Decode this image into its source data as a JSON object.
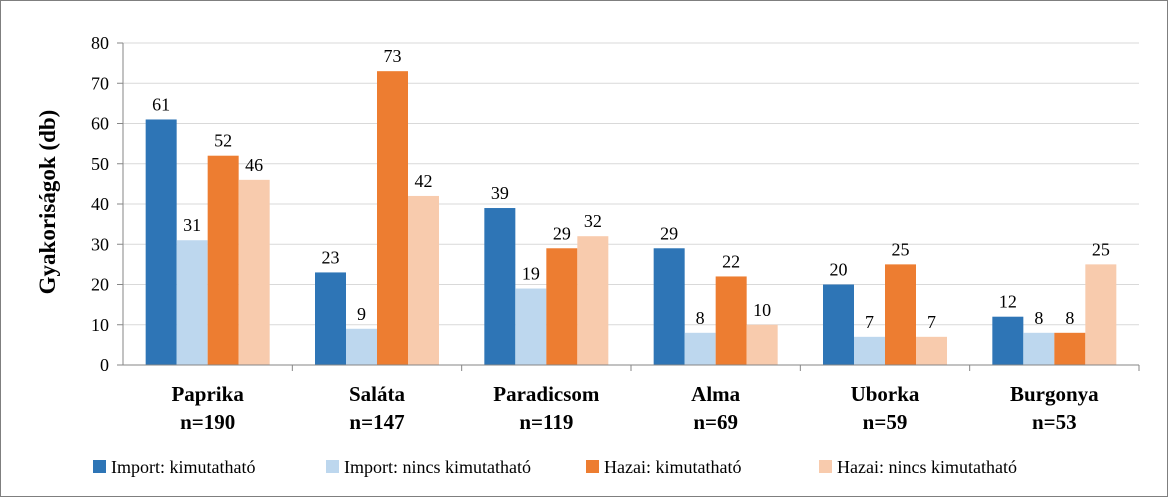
{
  "chart_data": {
    "type": "bar",
    "ylabel": "Gyakoriságok  (db)",
    "ylim": [
      0,
      80
    ],
    "yticks": [
      "0",
      "10",
      "20",
      "30",
      "40",
      "50",
      "60",
      "70",
      "80"
    ],
    "grid": true,
    "legend_position": "bottom",
    "categories": [
      {
        "name": "Paprika",
        "n": "n=190"
      },
      {
        "name": "Saláta",
        "n": "n=147"
      },
      {
        "name": "Paradicsom",
        "n": "n=119"
      },
      {
        "name": "Alma",
        "n": "n=69"
      },
      {
        "name": "Uborka",
        "n": "n=59"
      },
      {
        "name": "Burgonya",
        "n": "n=53"
      }
    ],
    "series": [
      {
        "name": "Import: kimutatható",
        "color": "#2e75b6",
        "values": [
          61,
          23,
          39,
          29,
          20,
          12
        ]
      },
      {
        "name": "Import: nincs kimutatható",
        "color": "#bdd7ee",
        "values": [
          31,
          9,
          19,
          8,
          7,
          8
        ]
      },
      {
        "name": "Hazai: kimutatható",
        "color": "#ed7d31",
        "values": [
          52,
          73,
          29,
          22,
          25,
          8
        ]
      },
      {
        "name": "Hazai: nincs kimutatható",
        "color": "#f8cbad",
        "values": [
          46,
          42,
          32,
          10,
          7,
          25
        ]
      }
    ]
  }
}
